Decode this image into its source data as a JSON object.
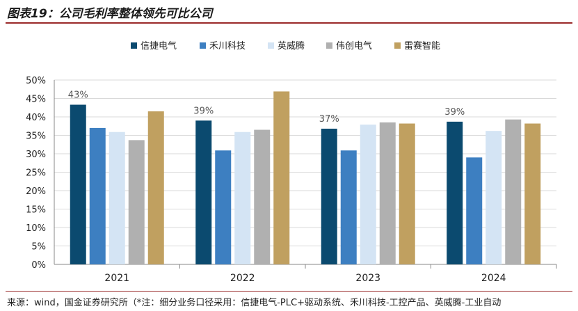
{
  "title": "图表19：公司毛利率整体领先可比公司",
  "source": "来源：wind，国金证券研究所（*注：细分业务口径采用：信捷电气-PLC+驱动系统、禾川科技-工控产品、英威腾-工业自动",
  "chart_data": {
    "type": "bar",
    "categories": [
      "2021",
      "2022",
      "2023",
      "2024"
    ],
    "series": [
      {
        "name": "信捷电气",
        "color": "#0b4a6f",
        "values": [
          43.3,
          39.0,
          36.8,
          38.7
        ]
      },
      {
        "name": "禾川科技",
        "color": "#3d7fc1",
        "values": [
          37.0,
          30.9,
          30.9,
          29.0
        ]
      },
      {
        "name": "英威腾",
        "color": "#d4e4f4",
        "values": [
          35.9,
          35.9,
          37.9,
          36.2
        ]
      },
      {
        "name": "伟创电气",
        "color": "#b0b0b0",
        "values": [
          33.7,
          36.5,
          38.5,
          39.3
        ]
      },
      {
        "name": "雷赛智能",
        "color": "#c0a060",
        "values": [
          41.5,
          46.9,
          38.2,
          38.2
        ]
      }
    ],
    "data_labels": [
      "43%",
      "39%",
      "37%",
      "39%"
    ],
    "yticks": [
      "0%",
      "5%",
      "10%",
      "15%",
      "20%",
      "25%",
      "30%",
      "35%",
      "40%",
      "45%",
      "50%"
    ],
    "ylim": [
      0,
      50
    ],
    "grid": true,
    "legend_position": "top-center"
  }
}
